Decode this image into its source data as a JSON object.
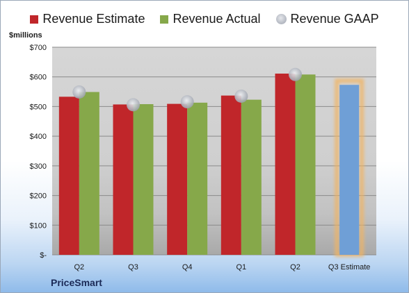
{
  "chart_data": {
    "type": "bar",
    "units_label": "$millions",
    "company": "PriceSmart",
    "categories": [
      "Q2",
      "Q3",
      "Q4",
      "Q1",
      "Q2",
      "Q3 Estimate"
    ],
    "series": [
      {
        "name": "Revenue Estimate",
        "kind": "bar",
        "color": "#c0262a",
        "values": [
          533,
          507,
          509,
          537,
          611,
          null
        ]
      },
      {
        "name": "Revenue Actual",
        "kind": "bar",
        "color": "#86a84a",
        "values": [
          549,
          508,
          513,
          523,
          608,
          null
        ]
      },
      {
        "name": "Revenue GAAP",
        "kind": "marker",
        "color": "#b8bcc4",
        "values": [
          549,
          506,
          516,
          535,
          608,
          null
        ]
      },
      {
        "name": "Q3 Estimate",
        "kind": "bar",
        "color": "#6f9fd6",
        "values": [
          null,
          null,
          null,
          null,
          null,
          573
        ]
      }
    ],
    "y_ticks": [
      {
        "value": 0,
        "label": "$-"
      },
      {
        "value": 100,
        "label": "$100"
      },
      {
        "value": 200,
        "label": "$200"
      },
      {
        "value": 300,
        "label": "$300"
      },
      {
        "value": 400,
        "label": "$400"
      },
      {
        "value": 500,
        "label": "$500"
      },
      {
        "value": 600,
        "label": "$600"
      },
      {
        "value": 700,
        "label": "$700"
      }
    ],
    "ylim": [
      0,
      700
    ],
    "grid": true,
    "legend_position": "top",
    "highlight_color": "#f0b463"
  }
}
